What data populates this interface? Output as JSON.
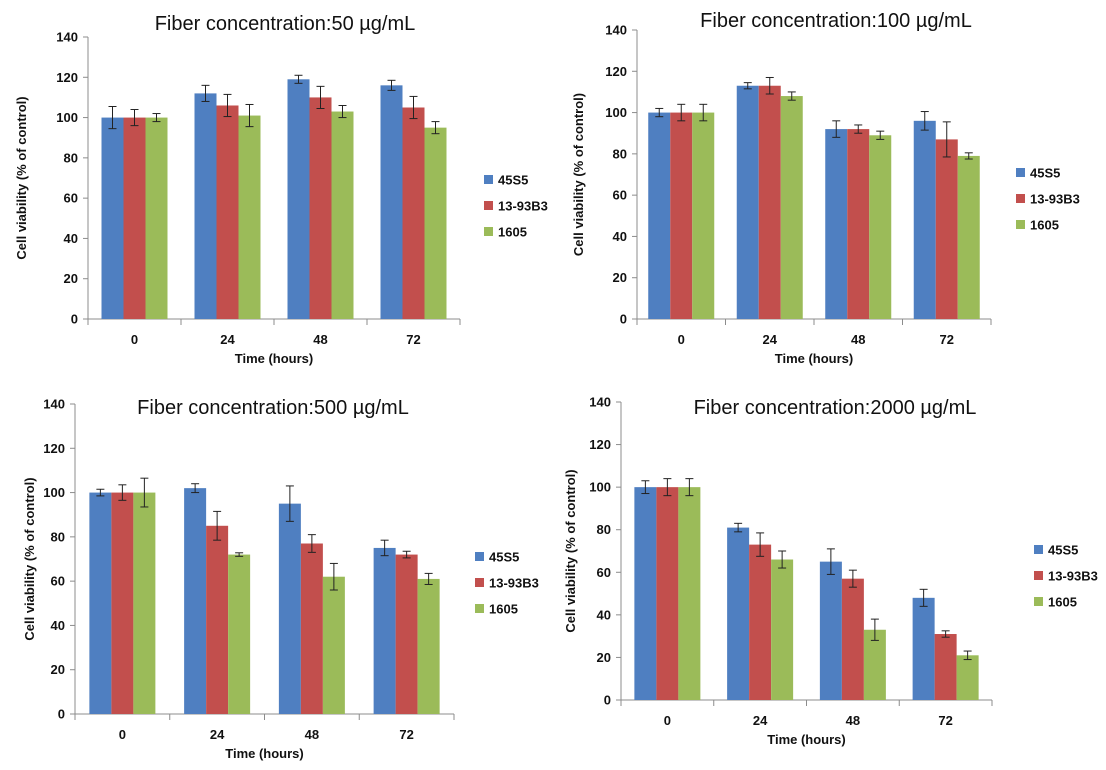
{
  "colors": {
    "45S5": "#4f7fc1",
    "13-93B3": "#c24f4d",
    "1605": "#9bbb59",
    "axis": "#8c8c8c",
    "errbar": "#222222"
  },
  "chart_data": [
    {
      "type": "bar",
      "title": "Fiber concentration:50 µg/mL",
      "xlabel": "Time (hours)",
      "ylabel": "Cell viability (% of control)",
      "ylim": [
        0,
        140
      ],
      "yticks": [
        "0",
        "20",
        "40",
        "60",
        "80",
        "100",
        "120",
        "140"
      ],
      "categories": [
        "0",
        "24",
        "48",
        "72"
      ],
      "legend_position": "right",
      "grid": false,
      "series": [
        {
          "name": "45S5",
          "values": [
            100,
            112,
            119,
            116
          ],
          "errors": [
            5.5,
            4,
            2,
            2.5
          ]
        },
        {
          "name": "13-93B3",
          "values": [
            100,
            106,
            110,
            105
          ],
          "errors": [
            4,
            5.5,
            5.5,
            5.5
          ]
        },
        {
          "name": "1605",
          "values": [
            100,
            101,
            103,
            95
          ],
          "errors": [
            2,
            5.5,
            3,
            3
          ]
        }
      ]
    },
    {
      "type": "bar",
      "title": "Fiber concentration:100 µg/mL",
      "xlabel": "Time (hours)",
      "ylabel": "Cell viability (% of control)",
      "ylim": [
        0,
        140
      ],
      "yticks": [
        "0",
        "20",
        "40",
        "60",
        "80",
        "100",
        "120",
        "140"
      ],
      "categories": [
        "0",
        "24",
        "48",
        "72"
      ],
      "legend_position": "right",
      "grid": false,
      "series": [
        {
          "name": "45S5",
          "values": [
            100,
            113,
            92,
            96
          ],
          "errors": [
            2,
            1.5,
            4,
            4.5
          ]
        },
        {
          "name": "13-93B3",
          "values": [
            100,
            113,
            92,
            87
          ],
          "errors": [
            4,
            4,
            2,
            8.5
          ]
        },
        {
          "name": "1605",
          "values": [
            100,
            108,
            89,
            79
          ],
          "errors": [
            4,
            2,
            2,
            1.5
          ]
        }
      ]
    },
    {
      "type": "bar",
      "title": "Fiber concentration:500 µg/mL",
      "xlabel": "Time (hours)",
      "ylabel": "Cell viability (% of control)",
      "ylim": [
        0,
        140
      ],
      "yticks": [
        "0",
        "20",
        "40",
        "60",
        "80",
        "100",
        "120",
        "140"
      ],
      "categories": [
        "0",
        "24",
        "48",
        "72"
      ],
      "legend_position": "right",
      "grid": false,
      "series": [
        {
          "name": "45S5",
          "values": [
            100,
            102,
            95,
            75
          ],
          "errors": [
            1.5,
            2,
            8,
            3.5
          ]
        },
        {
          "name": "13-93B3",
          "values": [
            100,
            85,
            77,
            72
          ],
          "errors": [
            3.5,
            6.5,
            4,
            1.5
          ]
        },
        {
          "name": "1605",
          "values": [
            100,
            72,
            62,
            61
          ],
          "errors": [
            6.5,
            0.8,
            6,
            2.5
          ]
        }
      ]
    },
    {
      "type": "bar",
      "title": "Fiber concentration:2000 µg/mL",
      "xlabel": "Time (hours)",
      "ylabel": "Cell viability (% of control)",
      "ylim": [
        0,
        140
      ],
      "yticks": [
        "0",
        "20",
        "40",
        "60",
        "80",
        "100",
        "120",
        "140"
      ],
      "categories": [
        "0",
        "24",
        "48",
        "72"
      ],
      "legend_position": "right",
      "grid": false,
      "series": [
        {
          "name": "45S5",
          "values": [
            100,
            81,
            65,
            48
          ],
          "errors": [
            3,
            2,
            6,
            4
          ]
        },
        {
          "name": "13-93B3",
          "values": [
            100,
            73,
            57,
            31
          ],
          "errors": [
            4,
            5.5,
            4,
            1.5
          ]
        },
        {
          "name": "1605",
          "values": [
            100,
            66,
            33,
            21
          ],
          "errors": [
            4,
            4,
            5,
            2
          ]
        }
      ]
    }
  ]
}
